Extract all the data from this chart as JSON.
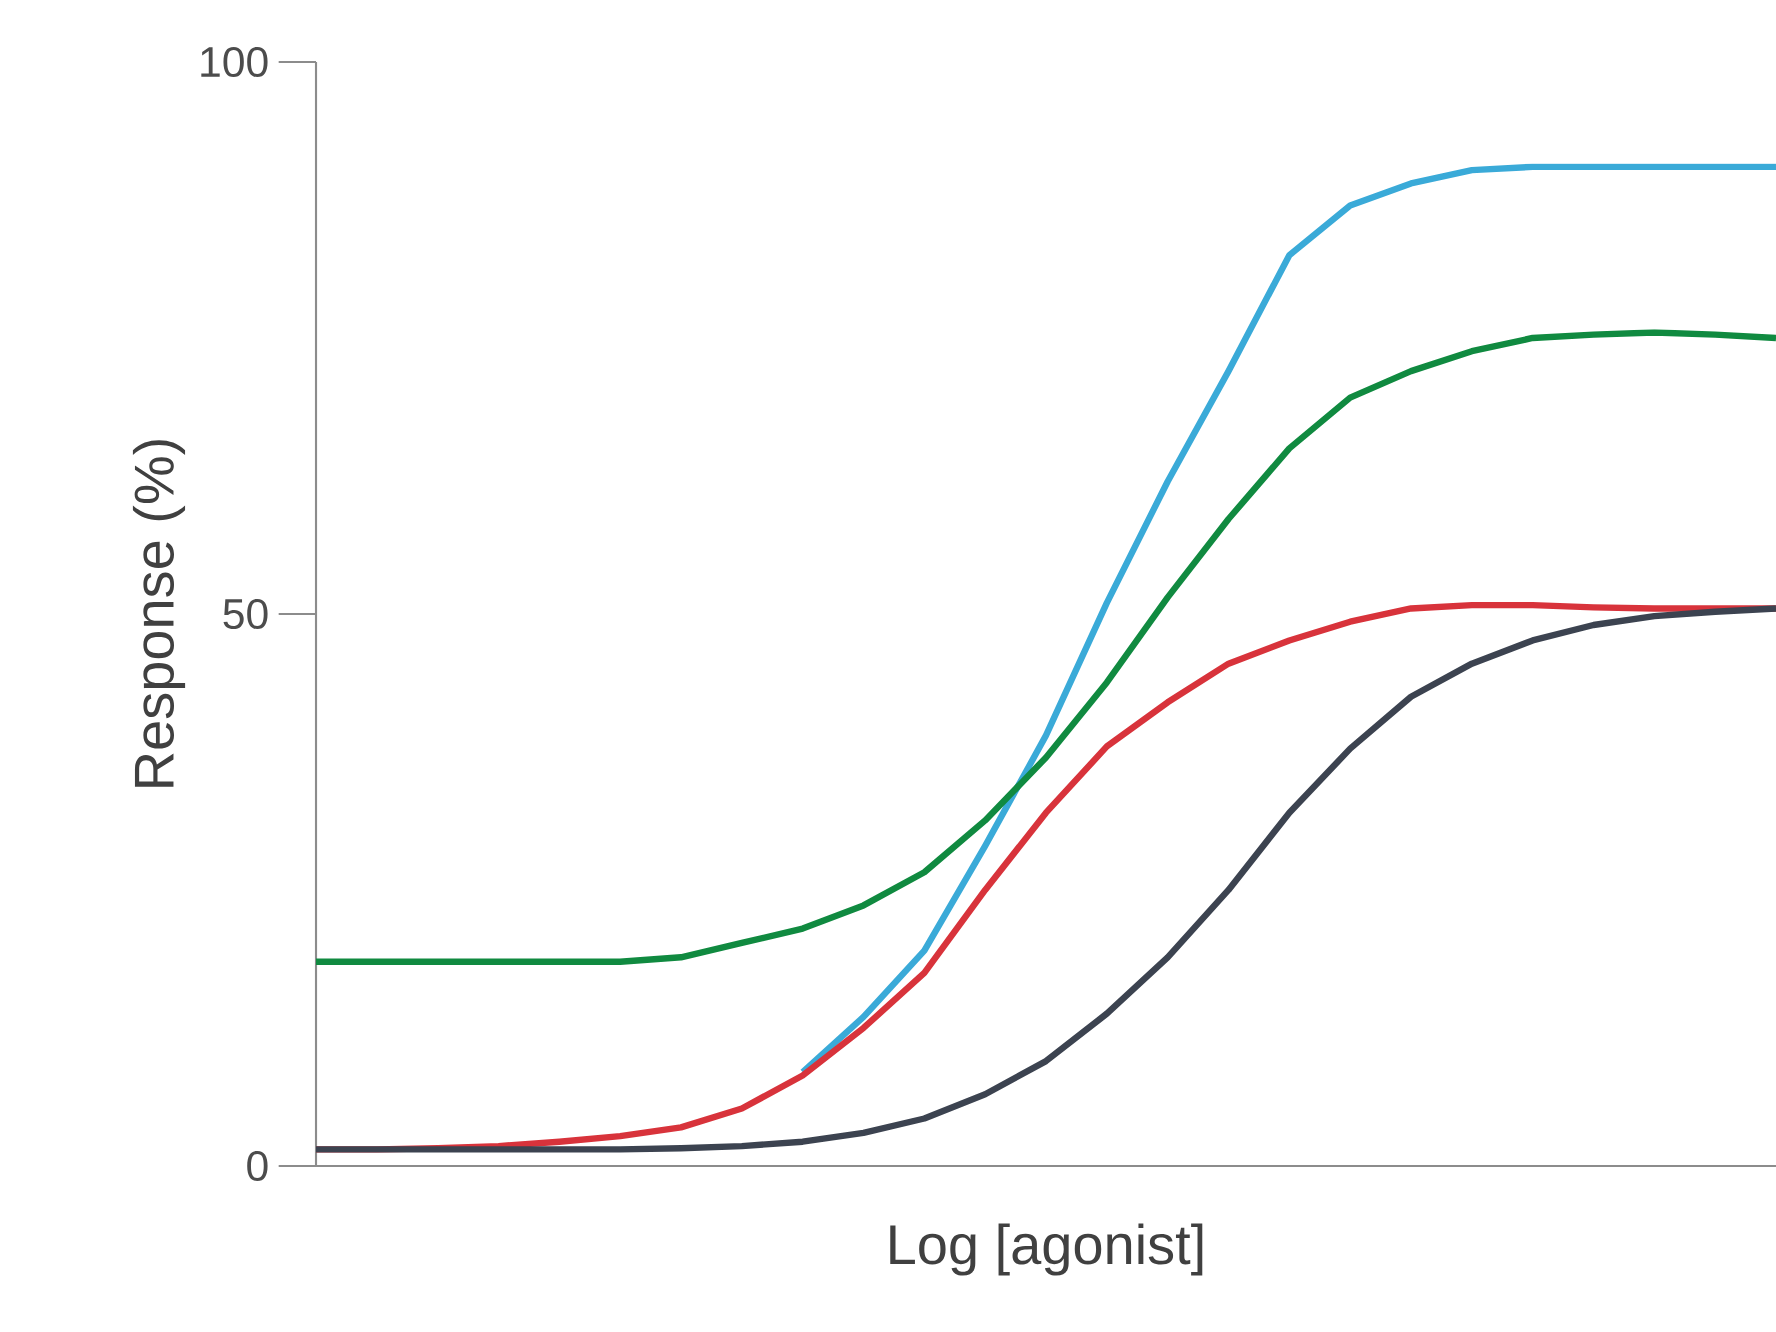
{
  "chart_data": {
    "type": "line",
    "xlabel": "Log [agonist]",
    "ylabel": "Response (%)",
    "categories": [
      null,
      null,
      null,
      null,
      null,
      null,
      null,
      null,
      null,
      null,
      null,
      null,
      null,
      null,
      null,
      null,
      null,
      null,
      null,
      null,
      null,
      null,
      null,
      null,
      null
    ],
    "ylim": [
      0,
      100
    ],
    "yticks": [
      0,
      50,
      100
    ],
    "tick_labels": "y",
    "marker": "none",
    "line_style": "solid",
    "series": [
      {
        "color": "#3aaad8",
        "values": [
          null,
          null,
          null,
          null,
          null,
          null,
          null,
          null,
          8.5,
          13.5,
          19.5,
          29,
          39,
          51,
          62,
          72,
          82.5,
          87,
          89,
          90.2,
          90.5,
          90.5,
          90.5,
          90.5,
          90.5
        ]
      },
      {
        "color": "#108a40",
        "values": [
          18.5,
          18.5,
          18.5,
          18.5,
          18.5,
          18.5,
          18.9,
          20.2,
          21.5,
          23.6,
          26.6,
          31.3,
          37,
          43.8,
          51.5,
          58.6,
          65,
          69.6,
          72,
          73.8,
          75,
          75.3,
          75.5,
          75.3,
          75
        ]
      },
      {
        "color": "#d8333b",
        "values": [
          1.5,
          1.5,
          1.6,
          1.8,
          2.2,
          2.7,
          3.5,
          5.2,
          8.2,
          12.5,
          17.5,
          25,
          32,
          38,
          42,
          45.5,
          47.6,
          49.3,
          50.5,
          50.8,
          50.8,
          50.6,
          50.5,
          50.5,
          50.5
        ]
      },
      {
        "color": "#3c4350",
        "values": [
          1.5,
          1.5,
          1.5,
          1.5,
          1.5,
          1.5,
          1.6,
          1.8,
          2.2,
          3,
          4.3,
          6.5,
          9.5,
          13.8,
          18.9,
          25,
          32,
          37.8,
          42.5,
          45.5,
          47.6,
          49,
          49.8,
          50.2,
          50.5
        ]
      }
    ]
  }
}
